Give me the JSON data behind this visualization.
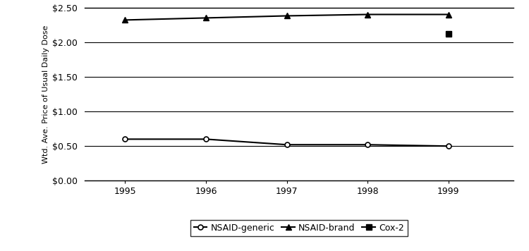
{
  "years": [
    1995,
    1996,
    1997,
    1998,
    1999
  ],
  "nsaid_generic": [
    0.6,
    0.6,
    0.52,
    0.52,
    0.5
  ],
  "nsaid_brand": [
    2.32,
    2.35,
    2.38,
    2.4,
    2.4
  ],
  "cox2_years": [
    1999
  ],
  "cox2_values": [
    2.12
  ],
  "ylabel": "Wtd. Ave. Price of Usual Daily Dose",
  "ylim": [
    0.0,
    2.5
  ],
  "yticks": [
    0.0,
    0.5,
    1.0,
    1.5,
    2.0,
    2.5
  ],
  "ytick_labels": [
    "$0.00",
    "$0.50",
    "$1.00",
    "$1.50",
    "$2.00",
    "$2.50"
  ],
  "xticks": [
    1995,
    1996,
    1997,
    1998,
    1999
  ],
  "line_color": "#000000",
  "bg_color": "#ffffff",
  "legend_labels": [
    "NSAID-generic",
    "NSAID-brand",
    "Cox-2"
  ],
  "figsize": [
    7.5,
    3.56
  ],
  "dpi": 100
}
